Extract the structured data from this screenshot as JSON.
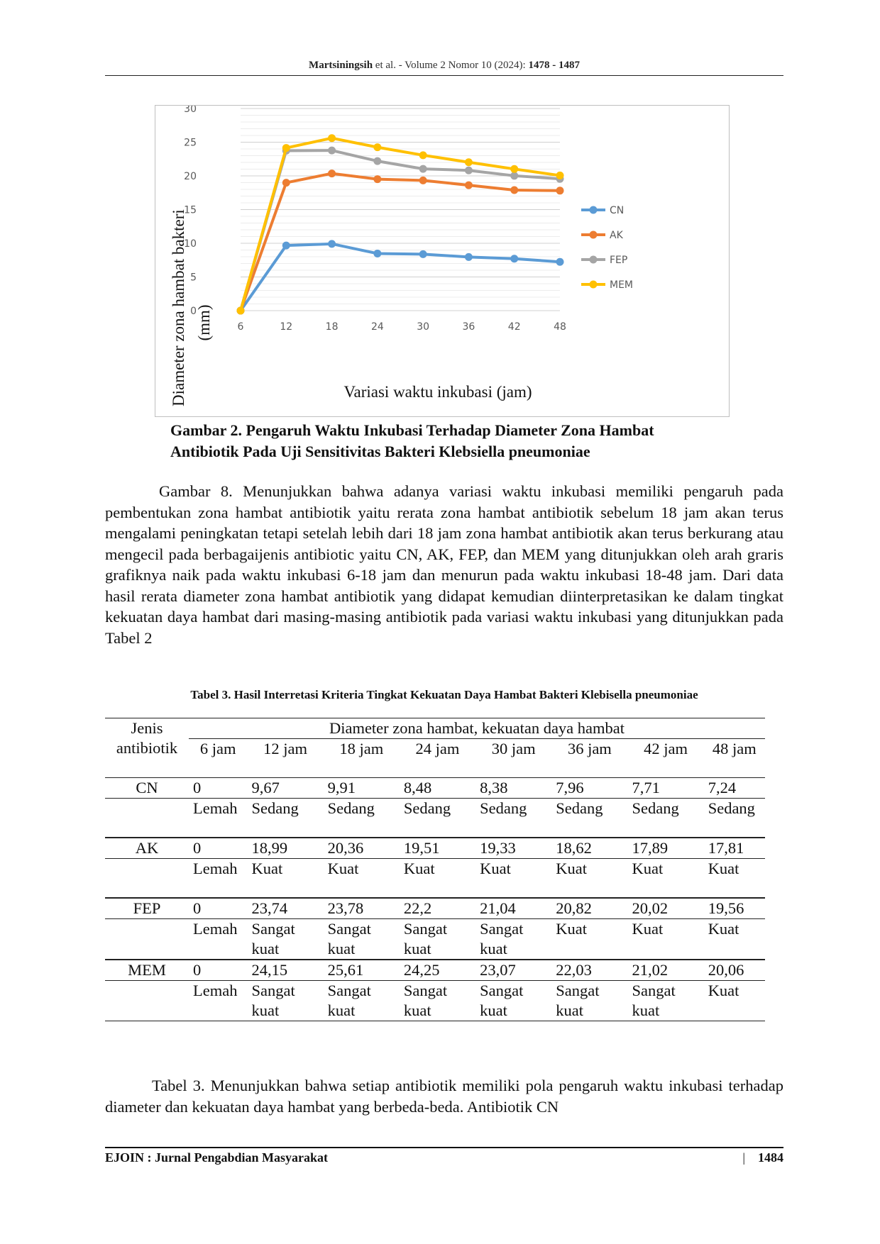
{
  "header": {
    "author": "Martsiningsih",
    "meta": "et al. - Volume 2 Nomor 10 (2024):",
    "pages": "1478 - 1487"
  },
  "chart_data": {
    "type": "line",
    "categories": [
      "6",
      "12",
      "18",
      "24",
      "30",
      "36",
      "42",
      "48"
    ],
    "series": [
      {
        "name": "CN",
        "color": "#5B9BD5",
        "values": [
          0,
          9.67,
          9.91,
          8.48,
          8.38,
          7.96,
          7.71,
          7.24
        ]
      },
      {
        "name": "AK",
        "color": "#ED7D31",
        "values": [
          0,
          18.99,
          20.36,
          19.51,
          19.33,
          18.62,
          17.89,
          17.81
        ]
      },
      {
        "name": "FEP",
        "color": "#A5A5A5",
        "values": [
          0,
          23.74,
          23.78,
          22.2,
          21.04,
          20.82,
          20.02,
          19.56
        ]
      },
      {
        "name": "MEM",
        "color": "#FFC000",
        "values": [
          0,
          24.15,
          25.61,
          24.25,
          23.07,
          22.03,
          21.02,
          20.06
        ]
      }
    ],
    "ylim": [
      0,
      30
    ],
    "yticks": [
      0,
      5,
      10,
      15,
      20,
      25,
      30
    ],
    "ylabel_line1": "Diameter zona hambat bakteri",
    "ylabel_line2": "(mm)",
    "xlabel": "Variasi waktu inkubasi (jam)",
    "legend_position": "right",
    "grid": true
  },
  "figure": {
    "caption_line1": "Gambar 2. Pengaruh Waktu Inkubasi Terhadap Diameter Zona Hambat",
    "caption_line2": "Antibiotik Pada Uji Sensitivitas Bakteri Klebsiella pneumoniae"
  },
  "paragraph1": "Gambar 8. Menunjukkan bahwa adanya variasi waktu inkubasi memiliki pengaruh pada pembentukan zona hambat antibiotik yaitu rerata zona hambat antibiotik sebelum 18 jam akan terus mengalami peningkatan tetapi setelah lebih dari 18 jam zona hambat antibiotik akan terus berkurang atau mengecil pada berbagaijenis antibiotic yaitu CN, AK, FEP, dan MEM yang ditunjukkan oleh arah graris grafiknya naik pada waktu inkubasi 6-18 jam dan menurun pada waktu inkubasi 18-48 jam.  Dari data hasil rerata diameter zona hambat antibiotik yang didapat kemudian diinterpretasikan ke dalam tingkat kekuatan daya hambat dari masing-masing antibiotik pada variasi waktu inkubasi yang ditunjukkan pada Tabel 2",
  "table": {
    "caption": "Tabel 3. Hasil Interretasi Kriteria Tingkat Kekuatan Daya Hambat Bakteri Klebisella pneumoniae",
    "col0_line1": "Jenis",
    "col0_line2": "antibiotik",
    "group_header": "Diameter zona hambat, kekuatan daya hambat",
    "time_headers": [
      "6 jam",
      "12 jam",
      "18 jam",
      "24 jam",
      "30 jam",
      "36 jam",
      "42 jam",
      "48 jam"
    ],
    "rows": [
      {
        "name": "CN",
        "values": [
          "0",
          "9,67",
          "9,91",
          "8,48",
          "8,38",
          "7,96",
          "7,71",
          "7,24"
        ],
        "levels": [
          "Lemah",
          "Sedang",
          "Sedang",
          "Sedang",
          "Sedang",
          "Sedang",
          "Sedang",
          "Sedang"
        ]
      },
      {
        "name": "AK",
        "values": [
          "0",
          "18,99",
          "20,36",
          "19,51",
          "19,33",
          "18,62",
          "17,89",
          "17,81"
        ],
        "levels": [
          "Lemah",
          "Kuat",
          "Kuat",
          "Kuat",
          "Kuat",
          "Kuat",
          "Kuat",
          "Kuat"
        ]
      },
      {
        "name": "FEP",
        "values": [
          "0",
          "23,74",
          "23,78",
          "22,2",
          "21,04",
          "20,82",
          "20,02",
          "19,56"
        ],
        "levels": [
          "Lemah",
          "Sangat kuat",
          "Sangat kuat",
          "Sangat kuat",
          "Sangat kuat",
          "Kuat",
          "Kuat",
          "Kuat"
        ]
      },
      {
        "name": "MEM",
        "values": [
          "0",
          "24,15",
          "25,61",
          "24,25",
          "23,07",
          "22,03",
          "21,02",
          "20,06"
        ],
        "levels": [
          "Lemah",
          "Sangat kuat",
          "Sangat kuat",
          "Sangat kuat",
          "Sangat kuat",
          "Sangat kuat",
          "Sangat kuat",
          "Kuat"
        ]
      }
    ]
  },
  "paragraph2": "Tabel 3. Menunjukkan bahwa setiap antibiotik memiliki pola pengaruh waktu inkubasi terhadap diameter dan kekuatan daya hambat yang berbeda-beda. Antibiotik CN",
  "footer": {
    "journal": "EJOIN : Jurnal Pengabdian Masyarakat",
    "separator": "|",
    "page": "1484"
  }
}
